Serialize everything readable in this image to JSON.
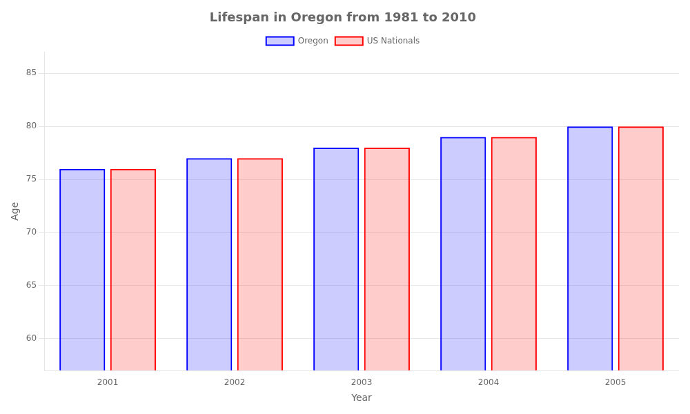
{
  "chart_data": {
    "type": "bar",
    "title": "Lifespan in Oregon from 1981 to 2010",
    "x_label": "Year",
    "y_label": "Age",
    "categories": [
      "2001",
      "2002",
      "2003",
      "2004",
      "2005"
    ],
    "series": [
      {
        "name": "Oregon",
        "color": "#0000ff",
        "values": [
          76,
          77,
          78,
          79,
          80
        ]
      },
      {
        "name": "US Nationals",
        "color": "#ff0000",
        "values": [
          76,
          77,
          78,
          79,
          80
        ]
      }
    ],
    "ylim": [
      57,
      87
    ],
    "yticks": [
      60,
      65,
      70,
      75,
      80,
      85
    ],
    "grid": true,
    "legend": "top"
  }
}
